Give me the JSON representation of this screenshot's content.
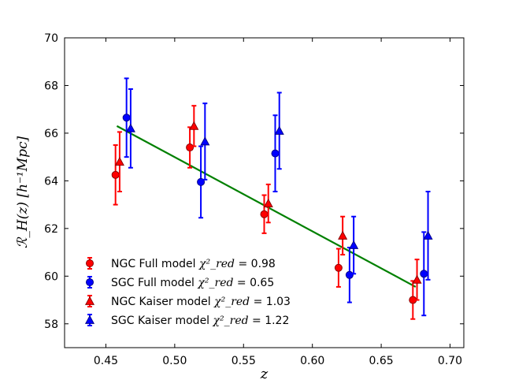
{
  "chart_data": {
    "type": "scatter",
    "xlabel": "z",
    "ylabel": "ℛ_H(z) [h⁻¹Mpc]",
    "xlim": [
      0.42,
      0.71
    ],
    "ylim": [
      57,
      70
    ],
    "xticks": [
      "0.45",
      "0.50",
      "0.55",
      "0.60",
      "0.65",
      "0.70"
    ],
    "yticks": [
      "58",
      "60",
      "62",
      "64",
      "66",
      "68",
      "70"
    ],
    "xtick_values": [
      0.45,
      0.5,
      0.55,
      0.6,
      0.65,
      0.7
    ],
    "ytick_values": [
      58,
      60,
      62,
      64,
      66,
      68,
      70
    ],
    "grid": false,
    "legend_position": "bottom-left",
    "series": [
      {
        "name": "NGC Full model",
        "chi_label": "χ²_red =",
        "chi_value": "0.98",
        "color": "#ff0000",
        "edge_color": "#8b0000",
        "marker": "circle",
        "points": [
          {
            "x": 0.457,
            "y": 64.25,
            "lo": 63.0,
            "hi": 65.5
          },
          {
            "x": 0.511,
            "y": 65.4,
            "lo": 64.55,
            "hi": 66.25
          },
          {
            "x": 0.565,
            "y": 62.6,
            "lo": 61.8,
            "hi": 63.4
          },
          {
            "x": 0.619,
            "y": 60.35,
            "lo": 59.55,
            "hi": 61.15
          },
          {
            "x": 0.673,
            "y": 59.0,
            "lo": 58.2,
            "hi": 59.8
          }
        ]
      },
      {
        "name": "SGC Full model",
        "chi_label": "χ²_red =",
        "chi_value": "0.65",
        "color": "#0000ff",
        "edge_color": "#00008b",
        "marker": "circle",
        "points": [
          {
            "x": 0.465,
            "y": 66.65,
            "lo": 65.0,
            "hi": 68.3
          },
          {
            "x": 0.519,
            "y": 63.95,
            "lo": 62.45,
            "hi": 65.45
          },
          {
            "x": 0.573,
            "y": 65.15,
            "lo": 63.55,
            "hi": 66.75
          },
          {
            "x": 0.627,
            "y": 60.05,
            "lo": 58.9,
            "hi": 61.2
          },
          {
            "x": 0.681,
            "y": 60.1,
            "lo": 58.35,
            "hi": 61.85
          }
        ]
      },
      {
        "name": "NGC Kaiser model",
        "chi_label": "χ²_red =",
        "chi_value": "1.03",
        "color": "#ff0000",
        "edge_color": "#8b0000",
        "marker": "triangle",
        "points": [
          {
            "x": 0.46,
            "y": 64.8,
            "lo": 63.55,
            "hi": 66.05
          },
          {
            "x": 0.514,
            "y": 66.3,
            "lo": 65.45,
            "hi": 67.15
          },
          {
            "x": 0.568,
            "y": 63.05,
            "lo": 62.25,
            "hi": 63.85
          },
          {
            "x": 0.622,
            "y": 61.7,
            "lo": 60.9,
            "hi": 62.5
          },
          {
            "x": 0.676,
            "y": 59.85,
            "lo": 59.0,
            "hi": 60.7
          }
        ]
      },
      {
        "name": "SGC Kaiser model",
        "chi_label": "χ²_red =",
        "chi_value": "1.22",
        "color": "#0000ff",
        "edge_color": "#00008b",
        "marker": "triangle",
        "points": [
          {
            "x": 0.468,
            "y": 66.2,
            "lo": 64.55,
            "hi": 67.85
          },
          {
            "x": 0.522,
            "y": 65.65,
            "lo": 64.05,
            "hi": 67.25
          },
          {
            "x": 0.576,
            "y": 66.1,
            "lo": 64.5,
            "hi": 67.7
          },
          {
            "x": 0.63,
            "y": 61.3,
            "lo": 60.1,
            "hi": 62.5
          },
          {
            "x": 0.684,
            "y": 61.7,
            "lo": 59.85,
            "hi": 63.55
          }
        ]
      }
    ],
    "fit_line": {
      "color": "#008000",
      "x": [
        0.458,
        0.675
      ],
      "y": [
        66.3,
        59.55
      ]
    }
  }
}
